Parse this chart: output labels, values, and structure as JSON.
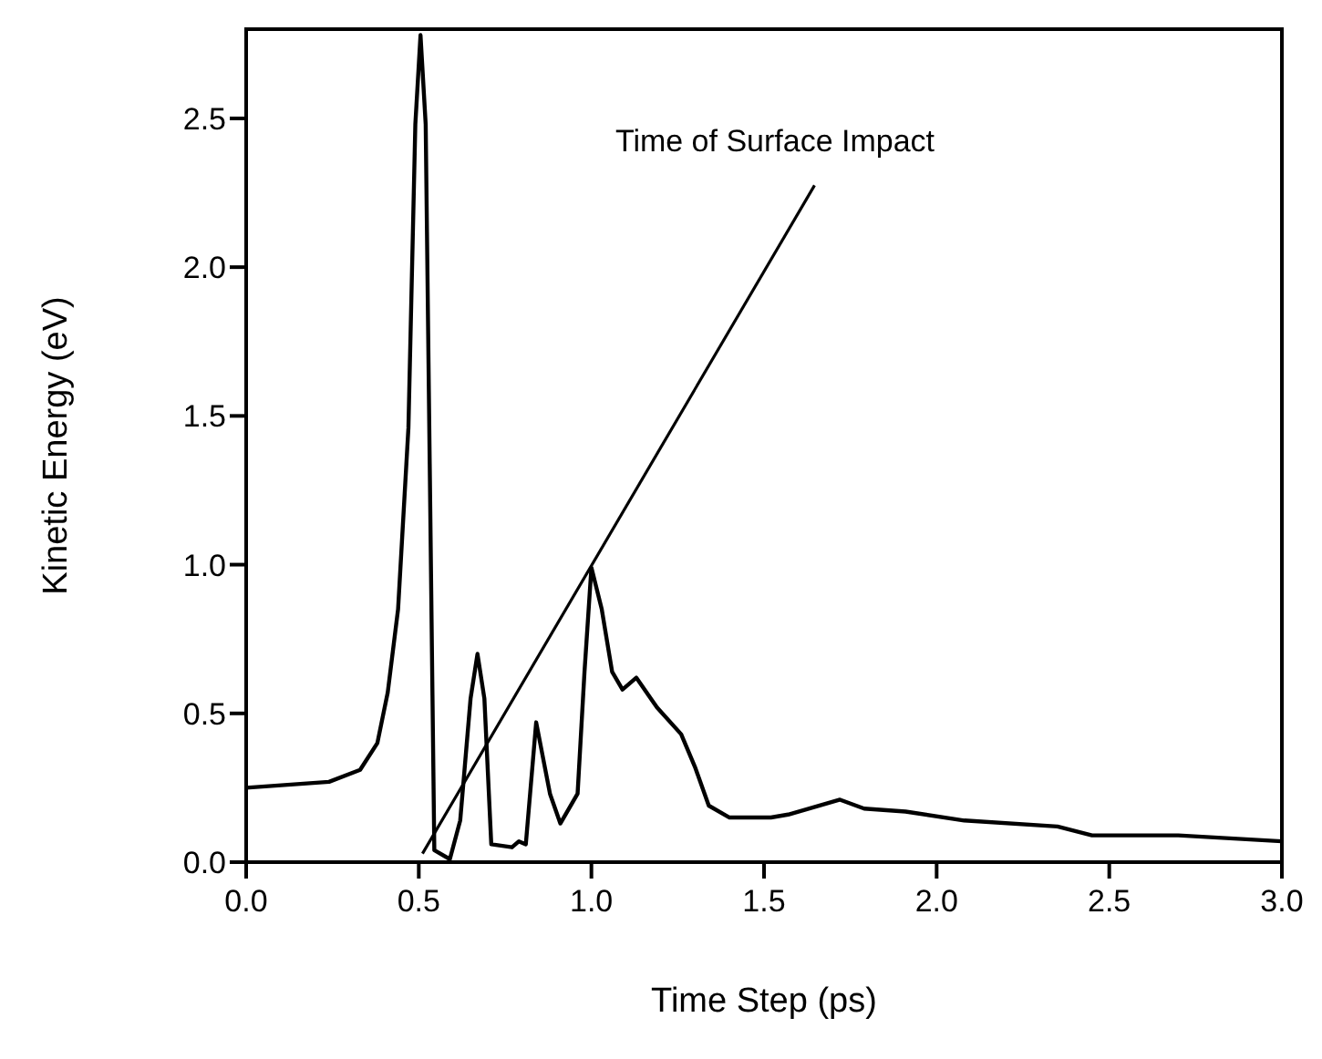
{
  "chart_data": {
    "type": "line",
    "xlabel": "Time Step (ps)",
    "ylabel": "Kinetic Energy (eV)",
    "xlim": [
      0,
      3
    ],
    "xticks": [
      {
        "value": 0,
        "label": "0.0"
      },
      {
        "value": 0.5,
        "label": "0.5"
      },
      {
        "value": 1,
        "label": "1.0"
      },
      {
        "value": 1.5,
        "label": "1.5"
      },
      {
        "value": 2,
        "label": "2.0"
      },
      {
        "value": 2.5,
        "label": "2.5"
      },
      {
        "value": 3,
        "label": "3.0"
      }
    ],
    "ylim": [
      0,
      2.8
    ],
    "yticks": [
      {
        "value": 0,
        "label": "0.0"
      },
      {
        "value": 0.5,
        "label": "0.5"
      },
      {
        "value": 1,
        "label": "1.0"
      },
      {
        "value": 1.5,
        "label": "1.5"
      },
      {
        "value": 2,
        "label": "2.0"
      },
      {
        "value": 2.5,
        "label": "2.5"
      }
    ],
    "marker": "none",
    "line_style": "solid",
    "annotations": [
      "Time of Surface Impact"
    ],
    "series": [
      {
        "color": "#000000",
        "x": [
          0,
          0.24,
          0.33,
          0.38,
          0.41,
          0.44,
          0.47,
          0.49,
          0.505,
          0.52,
          0.545,
          0.59,
          0.62,
          0.65,
          0.67,
          0.69,
          0.71,
          0.77,
          0.79,
          0.81,
          0.84,
          0.88,
          0.91,
          0.96,
          0.98,
          1.0,
          1.03,
          1.06,
          1.09,
          1.13,
          1.19,
          1.26,
          1.3,
          1.34,
          1.4,
          1.43,
          1.52,
          1.57,
          1.72,
          1.79,
          1.91,
          2.08,
          2.35,
          2.45,
          2.7,
          3.0
        ],
        "values": [
          0.25,
          0.27,
          0.31,
          0.4,
          0.57,
          0.85,
          1.46,
          2.48,
          2.78,
          2.48,
          0.04,
          0.01,
          0.14,
          0.55,
          0.7,
          0.55,
          0.06,
          0.05,
          0.07,
          0.06,
          0.47,
          0.23,
          0.13,
          0.23,
          0.64,
          0.99,
          0.85,
          0.64,
          0.58,
          0.62,
          0.52,
          0.43,
          0.32,
          0.19,
          0.15,
          0.15,
          0.15,
          0.16,
          0.21,
          0.18,
          0.17,
          0.14,
          0.12,
          0.09,
          0.09,
          0.07
        ]
      }
    ]
  }
}
